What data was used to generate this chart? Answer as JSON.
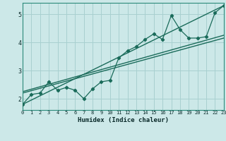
{
  "xlabel": "Humidex (Indice chaleur)",
  "bg_color": "#cce8e8",
  "grid_color": "#a8d0d0",
  "line_color": "#1a6b5a",
  "x_data": [
    0,
    1,
    2,
    3,
    4,
    5,
    6,
    7,
    8,
    9,
    10,
    11,
    12,
    13,
    14,
    15,
    16,
    17,
    18,
    19,
    20,
    21,
    22,
    23
  ],
  "y_data": [
    1.8,
    2.15,
    2.2,
    2.6,
    2.3,
    2.4,
    2.3,
    2.0,
    2.35,
    2.6,
    2.65,
    3.45,
    3.7,
    3.85,
    4.1,
    4.3,
    4.1,
    4.95,
    4.45,
    4.15,
    4.15,
    4.2,
    5.05,
    5.3
  ],
  "trend1_x": [
    0,
    23
  ],
  "trend1_y": [
    1.8,
    5.3
  ],
  "trend2_x": [
    0,
    23
  ],
  "trend2_y": [
    2.2,
    4.15
  ],
  "trend3_x": [
    0,
    23
  ],
  "trend3_y": [
    2.25,
    4.25
  ],
  "xlim": [
    0,
    23
  ],
  "ylim": [
    1.6,
    5.4
  ],
  "yticks": [
    2,
    3,
    4,
    5
  ],
  "xticks": [
    0,
    1,
    2,
    3,
    4,
    5,
    6,
    7,
    8,
    9,
    10,
    11,
    12,
    13,
    14,
    15,
    16,
    17,
    18,
    19,
    20,
    21,
    22,
    23
  ]
}
